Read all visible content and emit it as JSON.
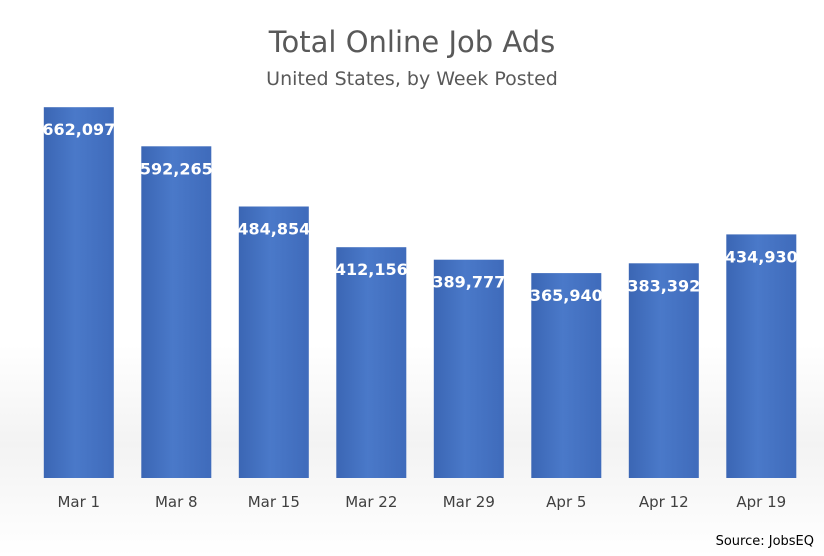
{
  "chart_data": {
    "type": "bar",
    "title": "Total Online Job Ads",
    "subtitle": "United States, by Week Posted",
    "categories": [
      "Mar 1",
      "Mar 8",
      "Mar 15",
      "Mar 22",
      "Mar 29",
      "Apr 5",
      "Apr 12",
      "Apr 19"
    ],
    "values": [
      662097,
      592265,
      484854,
      412156,
      389777,
      365940,
      383392,
      434930
    ],
    "value_labels": [
      "662,097",
      "592,265",
      "484,854",
      "412,156",
      "389,777",
      "365,940",
      "383,392",
      "434,930"
    ],
    "xlabel": "",
    "ylabel": "",
    "ylim": [
      0,
      700000
    ],
    "grid": false,
    "legend": "none",
    "source": "Source: JobsEQ",
    "colors": {
      "bar": "#4472c4",
      "bar_light": "#4f7fcf",
      "bar_dark": "#3a64b0",
      "title": "#595959"
    }
  }
}
